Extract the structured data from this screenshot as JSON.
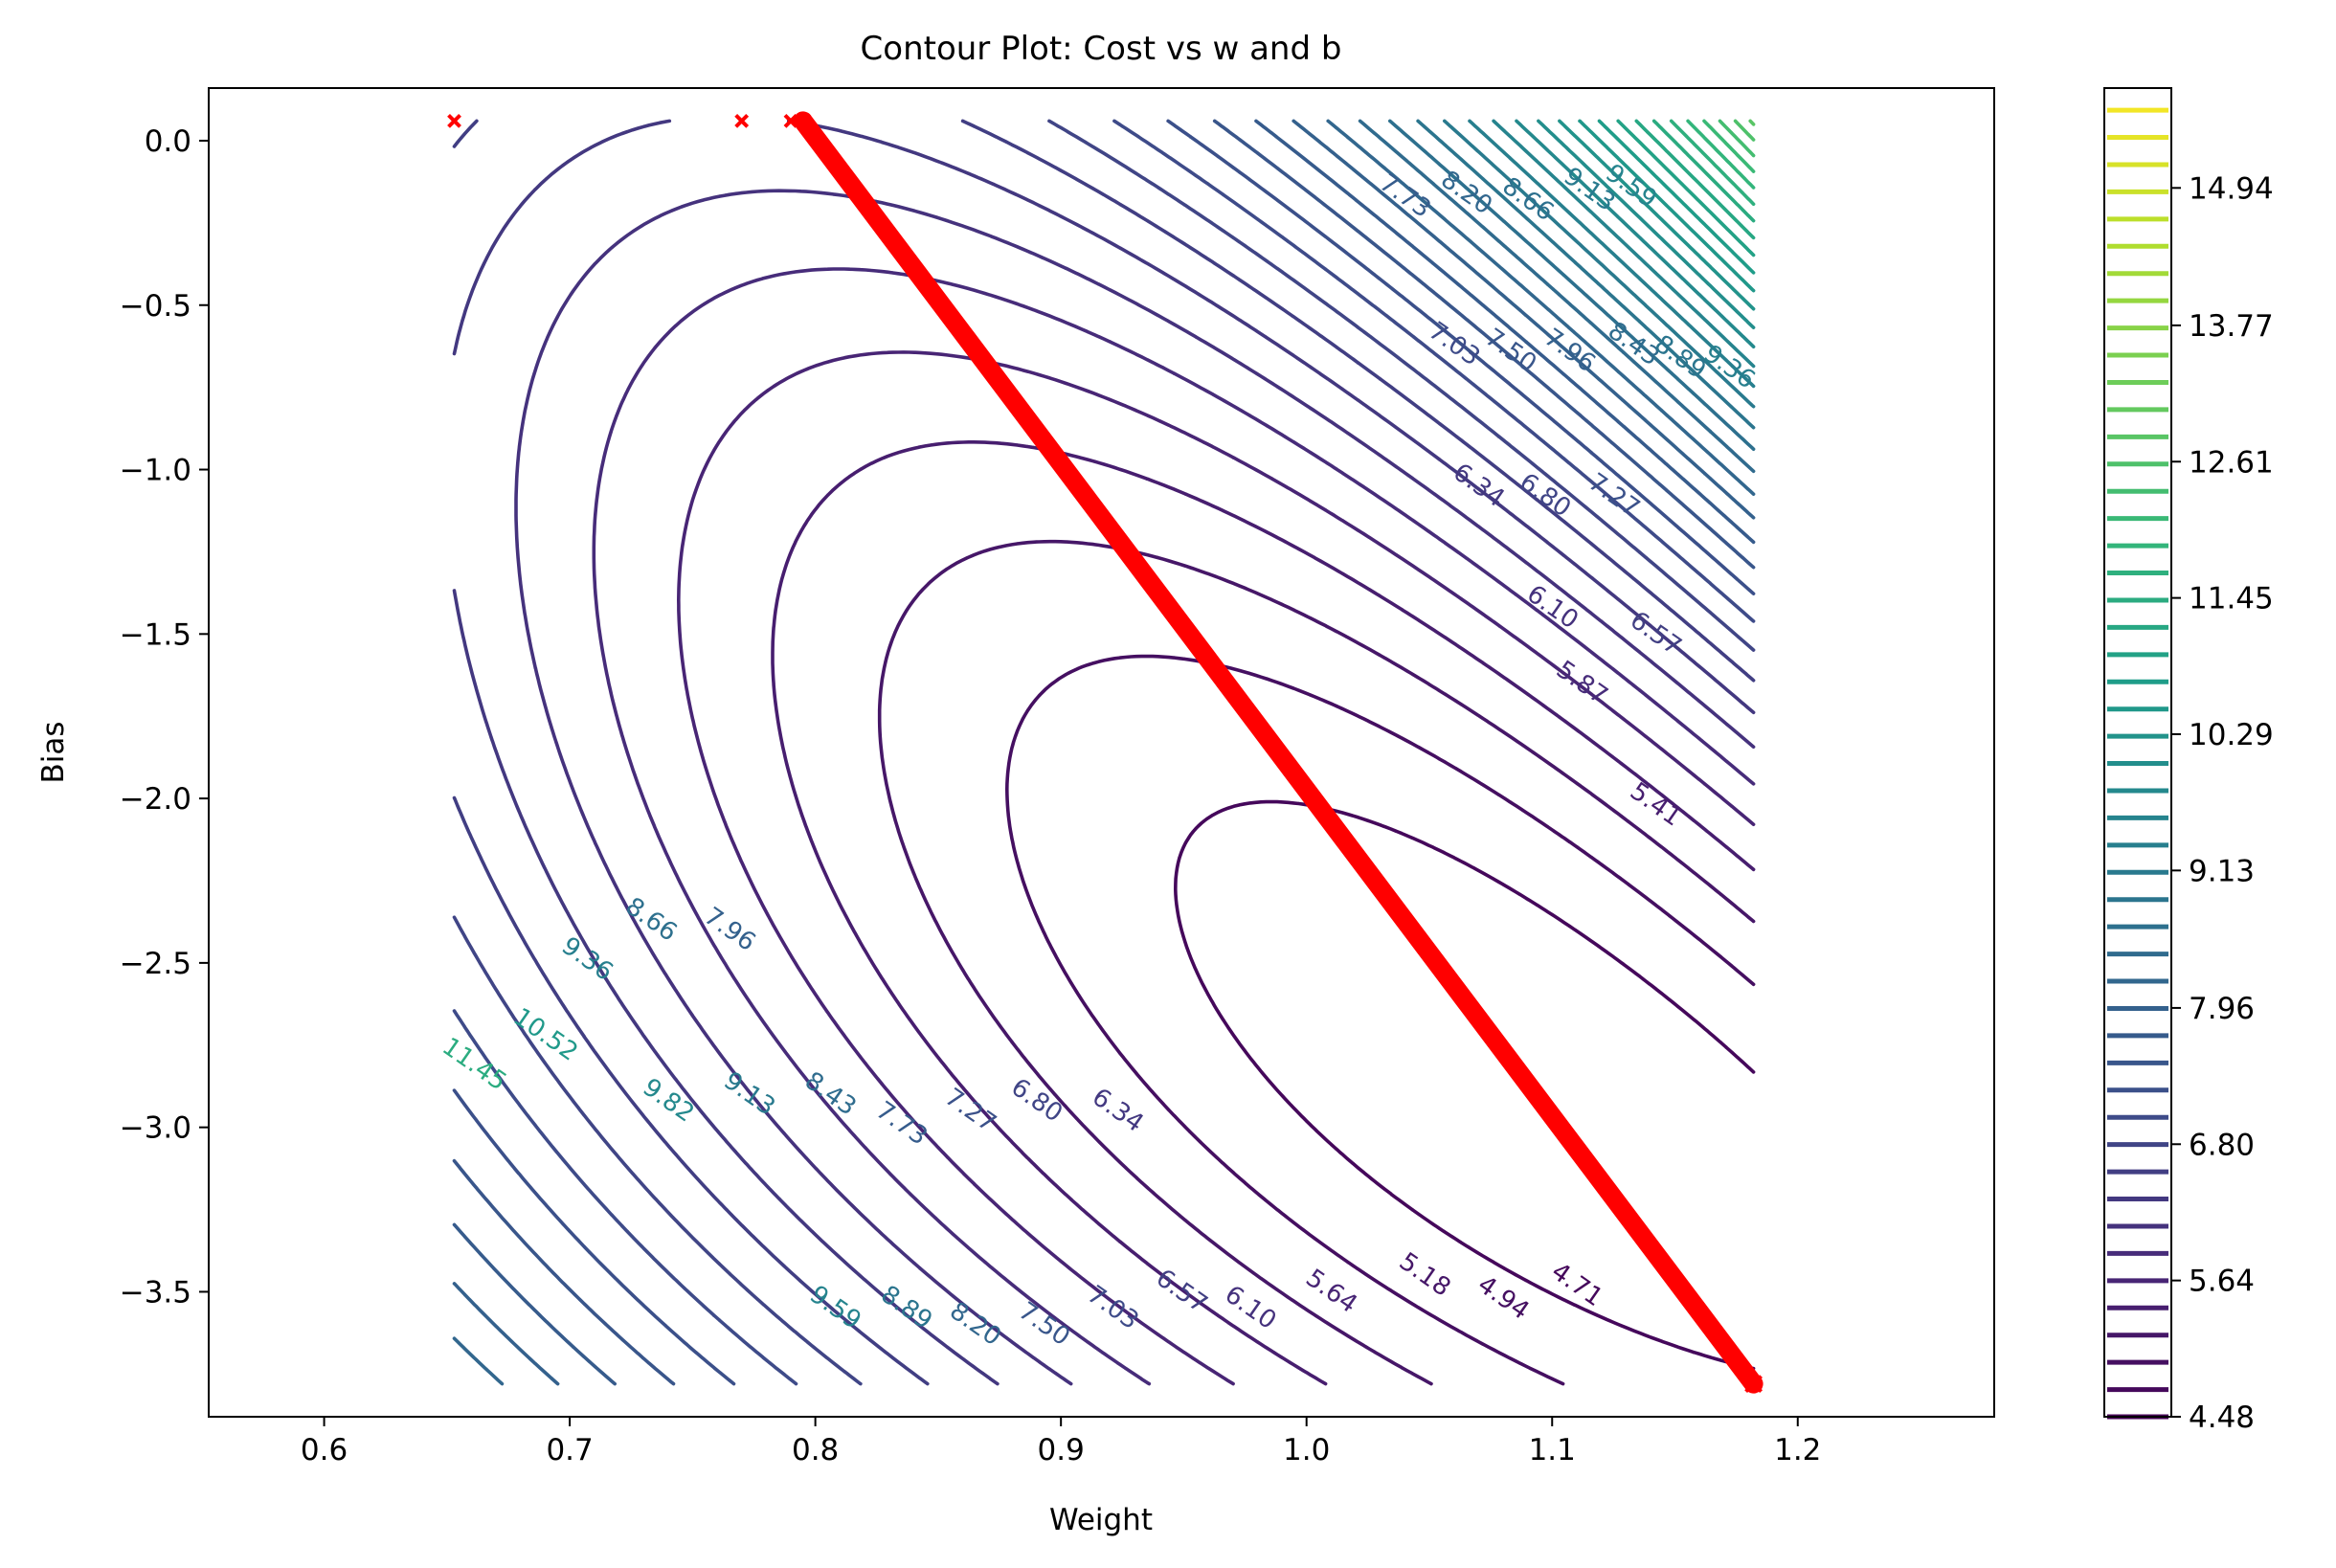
{
  "chart_data": {
    "type": "contour",
    "title": "Contour Plot: Cost vs w and b",
    "xlabel": "Weight",
    "ylabel": "Bias",
    "xlim": [
      0.553,
      1.28
    ],
    "ylim": [
      -3.88,
      0.16
    ],
    "grid": false,
    "x_ticks": [
      {
        "value": 0.6,
        "label": "0.6"
      },
      {
        "value": 0.7,
        "label": "0.7"
      },
      {
        "value": 0.8,
        "label": "0.8"
      },
      {
        "value": 0.9,
        "label": "0.9"
      },
      {
        "value": 1.0,
        "label": "1.0"
      },
      {
        "value": 1.1,
        "label": "1.1"
      },
      {
        "value": 1.2,
        "label": "1.2"
      }
    ],
    "y_ticks": [
      {
        "value": 0.0,
        "label": "0.0"
      },
      {
        "value": -0.5,
        "label": "−0.5"
      },
      {
        "value": -1.0,
        "label": "−1.0"
      },
      {
        "value": -1.5,
        "label": "−1.5"
      },
      {
        "value": -2.0,
        "label": "−2.0"
      },
      {
        "value": -2.5,
        "label": "−2.5"
      },
      {
        "value": -3.0,
        "label": "−3.0"
      },
      {
        "value": -3.5,
        "label": "−3.5"
      }
    ],
    "contour_levels": {
      "min": 4.48,
      "max": 15.79,
      "step": 0.2317
    },
    "contour_domain": {
      "w": [
        0.653,
        1.182
      ],
      "b": [
        -3.78,
        0.06
      ]
    },
    "colormap": "viridis",
    "colorbar": {
      "min": 4.48,
      "max": 15.79,
      "ticks": [
        {
          "value": 4.48,
          "label": "4.48"
        },
        {
          "value": 5.64,
          "label": "5.64"
        },
        {
          "value": 6.8,
          "label": "6.80"
        },
        {
          "value": 7.96,
          "label": "7.96"
        },
        {
          "value": 9.13,
          "label": "9.13"
        },
        {
          "value": 10.29,
          "label": "10.29"
        },
        {
          "value": 11.45,
          "label": "11.45"
        },
        {
          "value": 12.61,
          "label": "12.61"
        },
        {
          "value": 13.77,
          "label": "13.77"
        },
        {
          "value": 14.94,
          "label": "14.94"
        }
      ]
    },
    "contour_labels": [
      {
        "text": "7.73",
        "w": 1.04,
        "b": -0.17
      },
      {
        "text": "8.20",
        "w": 1.065,
        "b": -0.16
      },
      {
        "text": "8.66",
        "w": 1.09,
        "b": -0.18
      },
      {
        "text": "9.13",
        "w": 1.115,
        "b": -0.15
      },
      {
        "text": "9.59",
        "w": 1.132,
        "b": -0.14
      },
      {
        "text": "7.03",
        "w": 1.06,
        "b": -0.62
      },
      {
        "text": "7.50",
        "w": 1.083,
        "b": -0.64
      },
      {
        "text": "7.96",
        "w": 1.107,
        "b": -0.64
      },
      {
        "text": "8.43",
        "w": 1.133,
        "b": -0.62
      },
      {
        "text": "8.89",
        "w": 1.152,
        "b": -0.66
      },
      {
        "text": "9.36",
        "w": 1.172,
        "b": -0.69
      },
      {
        "text": "6.34",
        "w": 1.07,
        "b": -1.05
      },
      {
        "text": "6.80",
        "w": 1.097,
        "b": -1.08
      },
      {
        "text": "7.27",
        "w": 1.125,
        "b": -1.08
      },
      {
        "text": "6.10",
        "w": 1.1,
        "b": -1.42
      },
      {
        "text": "6.57",
        "w": 1.142,
        "b": -1.5
      },
      {
        "text": "5.87",
        "w": 1.112,
        "b": -1.65
      },
      {
        "text": "5.41",
        "w": 1.142,
        "b": -2.02
      },
      {
        "text": "8.66",
        "w": 0.733,
        "b": -2.37
      },
      {
        "text": "7.96",
        "w": 0.765,
        "b": -2.4
      },
      {
        "text": "9.36",
        "w": 0.707,
        "b": -2.49
      },
      {
        "text": "10.52",
        "w": 0.69,
        "b": -2.72
      },
      {
        "text": "11.45",
        "w": 0.661,
        "b": -2.81
      },
      {
        "text": "9.82",
        "w": 0.74,
        "b": -2.92
      },
      {
        "text": "9.13",
        "w": 0.773,
        "b": -2.9
      },
      {
        "text": "8.43",
        "w": 0.806,
        "b": -2.9
      },
      {
        "text": "7.73",
        "w": 0.835,
        "b": -2.99
      },
      {
        "text": "7.27",
        "w": 0.863,
        "b": -2.95
      },
      {
        "text": "6.80",
        "w": 0.89,
        "b": -2.92
      },
      {
        "text": "6.34",
        "w": 0.923,
        "b": -2.95
      },
      {
        "text": "9.59",
        "w": 0.808,
        "b": -3.55
      },
      {
        "text": "8.89",
        "w": 0.837,
        "b": -3.55
      },
      {
        "text": "8.20",
        "w": 0.865,
        "b": -3.6
      },
      {
        "text": "7.50",
        "w": 0.893,
        "b": -3.6
      },
      {
        "text": "7.03",
        "w": 0.921,
        "b": -3.55
      },
      {
        "text": "6.57",
        "w": 0.949,
        "b": -3.5
      },
      {
        "text": "6.10",
        "w": 0.977,
        "b": -3.55
      },
      {
        "text": "5.64",
        "w": 1.01,
        "b": -3.5
      },
      {
        "text": "5.18",
        "w": 1.048,
        "b": -3.45
      },
      {
        "text": "4.94",
        "w": 1.08,
        "b": -3.52
      },
      {
        "text": "4.71",
        "w": 1.11,
        "b": -3.48
      }
    ],
    "gd_path": {
      "color": "#ff0000",
      "marker": "x",
      "scattered_points": [
        [
          0.653,
          0.06
        ],
        [
          0.77,
          0.06
        ],
        [
          0.79,
          0.06
        ]
      ],
      "path_start": [
        0.795,
        0.06
      ],
      "path_end": [
        1.182,
        -3.78
      ]
    },
    "colors": {
      "path": "#ff0000",
      "frame": "#000000",
      "text": "#000000"
    }
  }
}
